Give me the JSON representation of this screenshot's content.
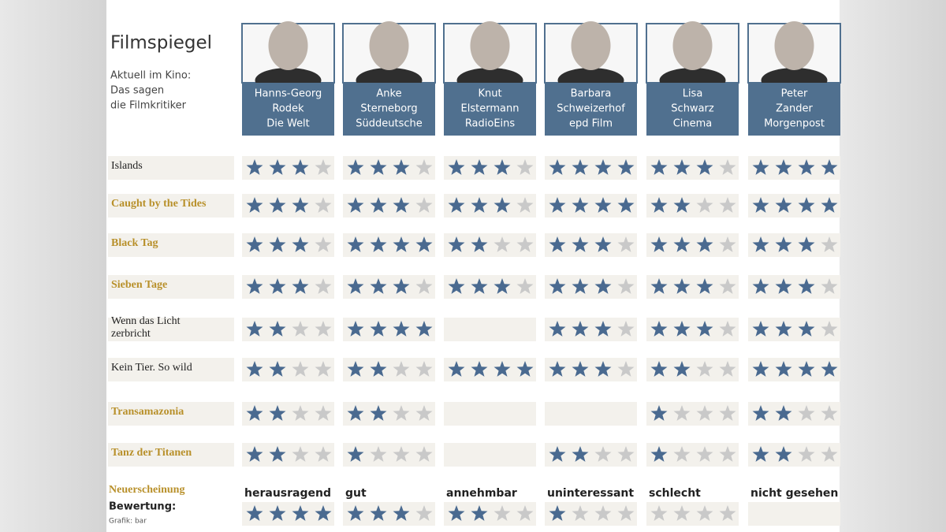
{
  "header": {
    "title": "Filmspiegel",
    "subtitle": [
      "Aktuell im Kino:",
      "Das sagen",
      "die Filmkritiker"
    ]
  },
  "critics": [
    {
      "lines": [
        "Hanns-Georg",
        "Rodek",
        "Die Welt"
      ]
    },
    {
      "lines": [
        "Anke",
        "Sterneborg",
        "Süddeutsche"
      ]
    },
    {
      "lines": [
        "Knut",
        "Elstermann",
        "RadioEins"
      ]
    },
    {
      "lines": [
        "Barbara",
        "Schweizerhof",
        "epd Film"
      ]
    },
    {
      "lines": [
        "Lisa",
        "Schwarz",
        "Cinema"
      ]
    },
    {
      "lines": [
        "Peter",
        "Zander",
        "Morgenpost"
      ]
    }
  ],
  "films": [
    {
      "lines": [
        "Islands"
      ],
      "color": "#222222",
      "ratings": [
        3,
        3,
        3,
        4,
        3,
        4
      ]
    },
    {
      "lines": [
        "Caught by the Tides"
      ],
      "color": "#b8902a",
      "ratings": [
        3,
        3,
        3,
        4,
        2,
        4
      ]
    },
    {
      "lines": [
        "Black Tag"
      ],
      "color": "#b8902a",
      "ratings": [
        3,
        4,
        2,
        3,
        3,
        3
      ]
    },
    {
      "lines": [
        "Sieben Tage"
      ],
      "color": "#b8902a",
      "ratings": [
        3,
        3,
        3,
        3,
        3,
        3
      ]
    },
    {
      "lines": [
        "Wenn das Licht",
        "zerbricht"
      ],
      "color": "#222222",
      "ratings": [
        2,
        4,
        null,
        3,
        3,
        3
      ]
    },
    {
      "lines": [
        "Kein Tier. So wild"
      ],
      "color": "#222222",
      "ratings": [
        2,
        2,
        4,
        3,
        2,
        4
      ]
    },
    {
      "lines": [
        "Transamazonia"
      ],
      "color": "#b8902a",
      "ratings": [
        2,
        2,
        null,
        null,
        1,
        2
      ]
    },
    {
      "lines": [
        "Tanz der Titanen"
      ],
      "color": "#b8902a",
      "ratings": [
        2,
        1,
        null,
        2,
        1,
        2
      ]
    }
  ],
  "legend": {
    "new_release": "Neuerscheinung",
    "rating_label": "Bewertung:",
    "credit": "Grafik: bar",
    "items": [
      {
        "label": "herausragend",
        "stars": 4
      },
      {
        "label": "gut",
        "stars": 3
      },
      {
        "label": "annehmbar",
        "stars": 2
      },
      {
        "label": "uninteressant",
        "stars": 1
      },
      {
        "label": "schlecht",
        "stars": 0
      },
      {
        "label": "nicht gesehen",
        "stars": null
      }
    ]
  }
}
